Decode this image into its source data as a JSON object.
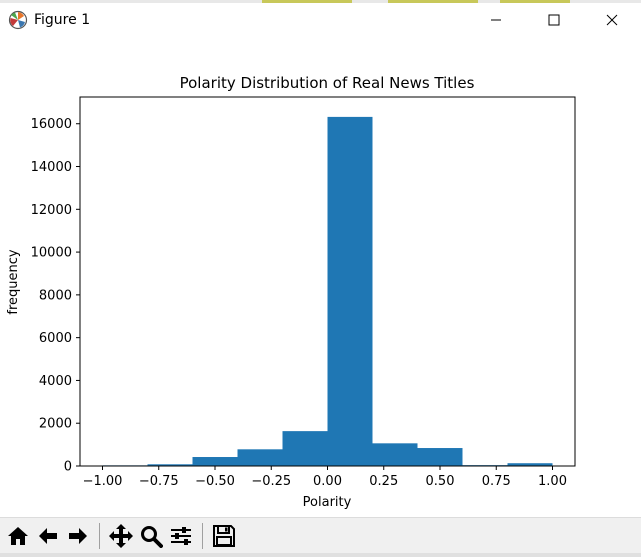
{
  "window": {
    "title": "Figure 1"
  },
  "icons": {
    "app": "matplotlib-icon",
    "minimize": "minimize-icon",
    "maximize": "maximize-icon",
    "close": "close-icon",
    "toolbar": [
      "home-icon",
      "back-arrow-icon",
      "forward-arrow-icon",
      "pan-icon",
      "zoom-icon",
      "configure-subplots-icon",
      "save-icon"
    ]
  },
  "colors": {
    "bar": "#1f77b4",
    "toolbar_bg": "#f0f0f0"
  },
  "chart_data": {
    "type": "bar",
    "title": "Polarity Distribution of Real News Titles",
    "xlabel": "Polarity",
    "ylabel": "frequency",
    "xlim": [
      -1.1,
      1.1
    ],
    "ylim": [
      0,
      17250
    ],
    "bin_edges": [
      -1.0,
      -0.8,
      -0.6,
      -0.4,
      -0.2,
      0.0,
      0.2,
      0.4,
      0.6,
      0.8,
      1.0
    ],
    "values": [
      30,
      80,
      420,
      780,
      1630,
      16320,
      1060,
      840,
      40,
      130
    ],
    "xticks": [
      -1.0,
      -0.75,
      -0.5,
      -0.25,
      0.0,
      0.25,
      0.5,
      0.75,
      1.0
    ],
    "xtick_labels": [
      "−1.00",
      "−0.75",
      "−0.50",
      "−0.25",
      "0.00",
      "0.25",
      "0.50",
      "0.75",
      "1.00"
    ],
    "yticks": [
      0,
      2000,
      4000,
      6000,
      8000,
      10000,
      12000,
      14000,
      16000
    ],
    "ytick_labels": [
      "0",
      "2000",
      "4000",
      "6000",
      "8000",
      "10000",
      "12000",
      "14000",
      "16000"
    ],
    "grid": false,
    "legend": "none"
  }
}
